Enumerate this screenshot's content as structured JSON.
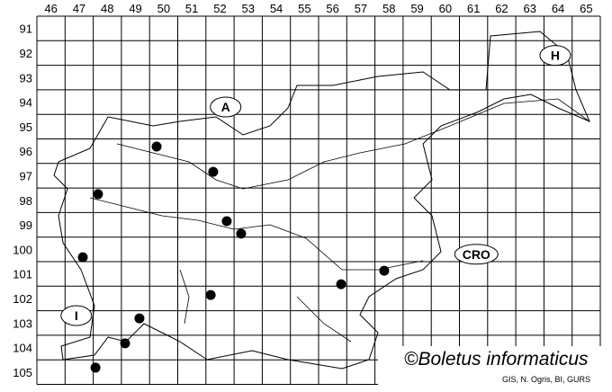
{
  "map": {
    "grid": {
      "columns": [
        "46",
        "47",
        "48",
        "49",
        "50",
        "51",
        "52",
        "53",
        "54",
        "55",
        "56",
        "57",
        "58",
        "59",
        "60",
        "61",
        "62",
        "63",
        "64",
        "65"
      ],
      "rows": [
        "91",
        "92",
        "93",
        "94",
        "95",
        "96",
        "97",
        "98",
        "99",
        "100",
        "101",
        "102",
        "103",
        "104",
        "105"
      ]
    },
    "country_labels": [
      {
        "label": "A",
        "col": 52.7,
        "row": 94.7
      },
      {
        "label": "H",
        "col": 64.4,
        "row": 92.6
      },
      {
        "label": "CRO",
        "col": 61.6,
        "row": 100.7
      },
      {
        "label": "I",
        "col": 47.4,
        "row": 103.2
      }
    ],
    "records": [
      {
        "col": 50.25,
        "row": 96.31
      },
      {
        "col": 52.26,
        "row": 97.34
      },
      {
        "col": 48.17,
        "row": 98.25
      },
      {
        "col": 52.74,
        "row": 99.35
      },
      {
        "col": 53.25,
        "row": 99.86
      },
      {
        "col": 47.63,
        "row": 100.82
      },
      {
        "col": 58.33,
        "row": 101.37
      },
      {
        "col": 56.8,
        "row": 101.92
      },
      {
        "col": 52.17,
        "row": 102.36
      },
      {
        "col": 49.64,
        "row": 103.31
      },
      {
        "col": 49.13,
        "row": 104.33
      },
      {
        "col": 48.08,
        "row": 105.32
      }
    ],
    "colors": {
      "grid": "#000000",
      "record": "#000000",
      "border": "#000000"
    }
  },
  "credit": "©Boletus informaticus",
  "source": "GIS, N. Ogris, BI, GURS"
}
